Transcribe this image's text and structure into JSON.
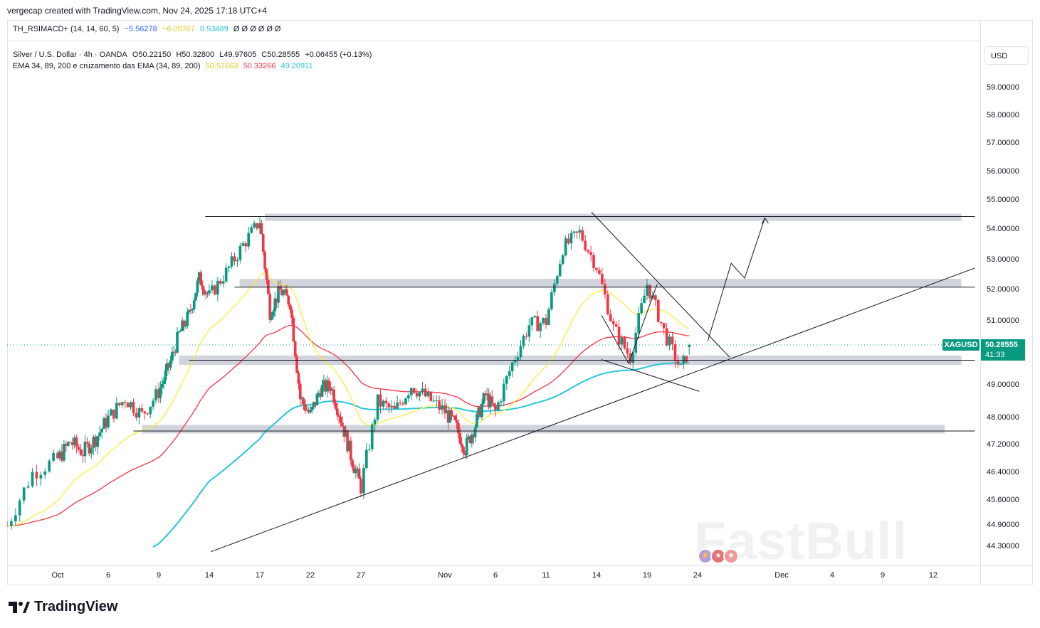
{
  "header": {
    "credit": "vergecap created with TradingView.com, Nov 24, 2025 17:18 UTC+4"
  },
  "indicator": {
    "name": "TH_RSIMACD+ (14, 14, 60, 5)",
    "v1": "−5.56278",
    "v2": "−6.09767",
    "v3": "0.53489",
    "empties": "Ø Ø Ø Ø Ø Ø",
    "colors": {
      "v1": "#2962ff",
      "v2": "#ffeb3b",
      "v3": "#26c6da"
    }
  },
  "legend": {
    "symbol_line": "Silver / U.S. Dollar · 4h · OANDA",
    "open": "O50.22150",
    "high": "H50.32800",
    "low": "L49.97605",
    "close": "C50.28555",
    "change": "+0.06455 (+0.13%)",
    "ema_title": "EMA 34, 89, 200 e cruzamento das EMA (34, 89, 200)",
    "ema34": "50.57663",
    "ema89": "50.33266",
    "ema200": "49.20911"
  },
  "currency_button": "USD",
  "price_tag": {
    "symbol": "XAGUSD",
    "price": "50.28555",
    "countdown": "41:33"
  },
  "branding": {
    "logo_text": "TradingView",
    "watermark": "FastBull"
  },
  "colors": {
    "ema34": "#ffeb3b",
    "ema89": "#f23645",
    "ema200": "#26c6da",
    "up": "#089981",
    "down": "#f23645",
    "zone": "#d1d4dc"
  },
  "chart_data": {
    "type": "candlestick",
    "title": "Silver / U.S. Dollar · 4h · OANDA",
    "y_axis": {
      "ticks": [
        59,
        58,
        57,
        56,
        55,
        54,
        53,
        52,
        51,
        49,
        48,
        47.2,
        46.4,
        45.6,
        44.9,
        44.3
      ],
      "tick_labels": [
        "59.00000",
        "58.00000",
        "57.00000",
        "56.00000",
        "55.00000",
        "54.00000",
        "53.00000",
        "52.00000",
        "51.00000",
        "49.00000",
        "48.00000",
        "47.20000",
        "46.40000",
        "45.60000",
        "44.90000",
        "44.30000"
      ]
    },
    "x_axis": {
      "days": [
        2,
        6,
        9,
        14,
        17,
        22,
        27,
        32,
        37,
        40,
        43,
        46,
        49,
        54,
        65,
        69,
        73
      ],
      "labels": [
        "Oct",
        "6",
        "9",
        "14",
        "17",
        "22",
        "27",
        "Nov",
        "6",
        "11",
        "14",
        "19",
        "24",
        "Dec",
        "4",
        "9",
        "12"
      ]
    },
    "close_keypoints": [
      [
        0,
        44.9
      ],
      [
        1,
        46.4
      ],
      [
        2,
        46.8
      ],
      [
        3,
        47.3
      ],
      [
        4,
        47.0
      ],
      [
        5,
        47.4
      ],
      [
        6,
        48.0
      ],
      [
        7,
        48.6
      ],
      [
        8,
        48.1
      ],
      [
        9,
        48.8
      ],
      [
        10,
        49.6
      ],
      [
        11,
        50.6
      ],
      [
        12,
        51.2
      ],
      [
        13,
        52.4
      ],
      [
        14,
        51.8
      ],
      [
        15,
        52.6
      ],
      [
        16,
        53.5
      ],
      [
        17,
        54.3
      ],
      [
        18,
        51.3
      ],
      [
        19,
        52.0
      ],
      [
        20,
        51.6
      ],
      [
        21,
        48.6
      ],
      [
        22,
        48.1
      ],
      [
        23,
        48.9
      ],
      [
        24,
        49.0
      ],
      [
        25,
        48.0
      ],
      [
        26,
        46.9
      ],
      [
        27,
        46.0
      ],
      [
        28,
        48.5
      ],
      [
        29,
        48.2
      ],
      [
        30,
        49.0
      ],
      [
        31,
        48.6
      ],
      [
        32,
        48.2
      ],
      [
        33,
        47.8
      ],
      [
        34,
        47.1
      ],
      [
        35,
        47.8
      ],
      [
        36,
        48.7
      ],
      [
        37,
        48.2
      ],
      [
        38,
        49.7
      ],
      [
        39,
        50.9
      ],
      [
        40,
        51.0
      ],
      [
        41,
        53.4
      ],
      [
        42,
        53.9
      ],
      [
        43,
        52.8
      ],
      [
        44,
        50.8
      ],
      [
        45,
        49.9
      ],
      [
        46,
        52.2
      ],
      [
        47,
        50.7
      ],
      [
        48,
        49.5
      ],
      [
        48.6,
        50.29
      ]
    ],
    "ema": [
      {
        "name": "EMA 34",
        "last": 50.57663
      },
      {
        "name": "EMA 89",
        "last": 50.33266
      },
      {
        "name": "EMA 200",
        "last": 49.20911
      }
    ],
    "zones": [
      {
        "label": "resistance",
        "low": 54.3,
        "high": 54.55,
        "from_day": 17.5,
        "to_day": 77.2
      },
      {
        "label": "resistance",
        "low": 52.1,
        "high": 52.38,
        "from_day": 15.8,
        "to_day": 77.2
      },
      {
        "label": "support",
        "low": 49.65,
        "high": 49.95,
        "from_day": 11.0,
        "to_day": 77.2
      },
      {
        "label": "support",
        "low": 47.55,
        "high": 47.8,
        "from_day": 8.0,
        "to_day": 74.7
      }
    ],
    "lines": [
      {
        "label": "rising support trendline",
        "from": [
          14.1,
          44.17
        ],
        "to": [
          79.2,
          52.74
        ]
      },
      {
        "label": "descending resistance",
        "from": [
          42.7,
          54.6
        ],
        "to": [
          50.9,
          49.9
        ]
      },
      {
        "label": "falling wedge lower",
        "from": [
          43.3,
          49.82
        ],
        "to": [
          49.1,
          48.82
        ]
      },
      {
        "label": "horizontal 54.45",
        "from": [
          13.6,
          54.45
        ],
        "to": [
          79.2,
          54.45
        ]
      },
      {
        "label": "horizontal 52.1",
        "from": [
          15.5,
          52.1
        ],
        "to": [
          79.2,
          52.1
        ]
      },
      {
        "label": "horizontal 49.8",
        "from": [
          12.0,
          49.8
        ],
        "to": [
          79.2,
          49.8
        ]
      },
      {
        "label": "horizontal 47.62",
        "from": [
          7.5,
          47.62
        ],
        "to": [
          79.2,
          47.62
        ]
      }
    ],
    "projection": [
      [
        49.6,
        50.4
      ],
      [
        51.0,
        52.9
      ],
      [
        51.8,
        52.4
      ],
      [
        53.0,
        54.4
      ]
    ],
    "current_price": 50.28555,
    "legend_position": "top-left"
  }
}
